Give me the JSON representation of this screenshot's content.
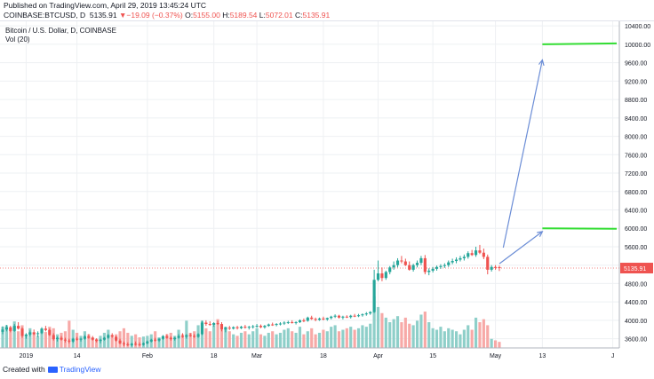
{
  "header": {
    "published": "Published on TradingView.com, April 29, 2019 13:45:24 UTC",
    "symbol": "COINBASE:BTCUSD, D",
    "last": "5135.91",
    "change": "−19.09 (−0.37%)",
    "open_label": "O:",
    "open": "5155.00",
    "high_label": "H:",
    "high": "5189.54",
    "low_label": "L:",
    "low": "5072.01",
    "close_label": "C:",
    "close": "5135.91"
  },
  "legend": {
    "title": "Bitcoin / U.S. Dollar, D, COINBASE",
    "volume": "Vol (20)"
  },
  "footer": {
    "created_with": "Created with",
    "brand": "TradingView"
  },
  "colors": {
    "up": "#26a69a",
    "down": "#ef5350",
    "vol_up": "#8ecfc9",
    "vol_down": "#f7a9a7",
    "arrow": "#6b8dd6",
    "target_line": "#33dd33",
    "price_tag": "#ef5350"
  },
  "chart_data": {
    "type": "candlestick",
    "symbol": "COINBASE:BTCUSD",
    "interval": "D",
    "ylim": [
      3400,
      10500
    ],
    "y_ticks": [
      3600,
      4000,
      4400,
      4800,
      5200,
      5600,
      6000,
      6400,
      6800,
      7200,
      7600,
      8000,
      8400,
      8800,
      9200,
      9600,
      10000,
      10400
    ],
    "y_tick_labels": [
      "3600.00",
      "4000.00",
      "4400.00",
      "4800.00",
      "5200.00",
      "5600.00",
      "6000.00",
      "6400.00",
      "6800.00",
      "7200.00",
      "7600.00",
      "8000.00",
      "8400.00",
      "8800.00",
      "9200.00",
      "9600.00",
      "10000.00",
      "10400.00"
    ],
    "x_ticks": [
      {
        "label": "2019",
        "day": 6
      },
      {
        "label": "14",
        "day": 19
      },
      {
        "label": "Feb",
        "day": 37
      },
      {
        "label": "18",
        "day": 54
      },
      {
        "label": "Mar",
        "day": 65
      },
      {
        "label": "18",
        "day": 82
      },
      {
        "label": "Apr",
        "day": 96
      },
      {
        "label": "15",
        "day": 110
      },
      {
        "label": "May",
        "day": 126
      },
      {
        "label": "13",
        "day": 138
      },
      {
        "label": "J",
        "day": 156
      }
    ],
    "x_range": [
      0,
      157
    ],
    "last_price": 5135.91,
    "last_price_label": "5135.91",
    "candles": [
      [
        3750,
        3870,
        3700,
        3800
      ],
      [
        3800,
        3900,
        3760,
        3850
      ],
      [
        3850,
        3880,
        3740,
        3770
      ],
      [
        3770,
        3920,
        3750,
        3880
      ],
      [
        3880,
        3960,
        3800,
        3820
      ],
      [
        3820,
        3850,
        3620,
        3660
      ],
      [
        3660,
        3720,
        3600,
        3690
      ],
      [
        3690,
        3780,
        3650,
        3740
      ],
      [
        3740,
        3800,
        3680,
        3700
      ],
      [
        3700,
        3760,
        3640,
        3720
      ],
      [
        3720,
        3850,
        3700,
        3820
      ],
      [
        3820,
        3880,
        3760,
        3790
      ],
      [
        3790,
        3820,
        3660,
        3680
      ],
      [
        3680,
        3720,
        3560,
        3590
      ],
      [
        3590,
        3650,
        3540,
        3620
      ],
      [
        3620,
        3660,
        3560,
        3580
      ],
      [
        3580,
        3620,
        3520,
        3560
      ],
      [
        3560,
        3600,
        3500,
        3540
      ],
      [
        3540,
        3620,
        3510,
        3600
      ],
      [
        3600,
        3640,
        3560,
        3580
      ],
      [
        3580,
        3620,
        3540,
        3600
      ],
      [
        3600,
        3680,
        3580,
        3650
      ],
      [
        3650,
        3700,
        3600,
        3620
      ],
      [
        3620,
        3660,
        3560,
        3580
      ],
      [
        3580,
        3610,
        3520,
        3550
      ],
      [
        3550,
        3600,
        3500,
        3580
      ],
      [
        3580,
        3640,
        3560,
        3620
      ],
      [
        3620,
        3700,
        3600,
        3680
      ],
      [
        3680,
        3720,
        3620,
        3640
      ],
      [
        3640,
        3660,
        3540,
        3560
      ],
      [
        3560,
        3600,
        3480,
        3500
      ],
      [
        3500,
        3540,
        3440,
        3480
      ],
      [
        3480,
        3520,
        3440,
        3460
      ],
      [
        3460,
        3510,
        3430,
        3490
      ],
      [
        3490,
        3540,
        3450,
        3480
      ],
      [
        3480,
        3520,
        3440,
        3470
      ],
      [
        3470,
        3520,
        3450,
        3500
      ],
      [
        3500,
        3560,
        3480,
        3540
      ],
      [
        3540,
        3600,
        3520,
        3580
      ],
      [
        3580,
        3620,
        3540,
        3560
      ],
      [
        3560,
        3610,
        3530,
        3600
      ],
      [
        3600,
        3680,
        3580,
        3650
      ],
      [
        3650,
        3700,
        3600,
        3620
      ],
      [
        3620,
        3650,
        3560,
        3590
      ],
      [
        3590,
        3640,
        3560,
        3620
      ],
      [
        3620,
        3700,
        3600,
        3660
      ],
      [
        3660,
        3720,
        3620,
        3640
      ],
      [
        3640,
        3700,
        3600,
        3680
      ],
      [
        3680,
        3720,
        3640,
        3660
      ],
      [
        3660,
        3700,
        3620,
        3640
      ],
      [
        3640,
        3720,
        3620,
        3700
      ],
      [
        3700,
        3990,
        3680,
        3950
      ],
      [
        3950,
        4000,
        3880,
        3920
      ],
      [
        3920,
        3980,
        3880,
        3900
      ],
      [
        3900,
        3960,
        3860,
        3940
      ],
      [
        3940,
        3990,
        3900,
        3920
      ],
      [
        3920,
        3960,
        3760,
        3800
      ],
      [
        3800,
        3860,
        3740,
        3840
      ],
      [
        3840,
        3880,
        3790,
        3820
      ],
      [
        3820,
        3870,
        3800,
        3850
      ],
      [
        3850,
        3880,
        3800,
        3830
      ],
      [
        3830,
        3880,
        3810,
        3860
      ],
      [
        3860,
        3900,
        3820,
        3840
      ],
      [
        3840,
        3880,
        3800,
        3860
      ],
      [
        3860,
        3900,
        3820,
        3870
      ],
      [
        3870,
        3920,
        3840,
        3880
      ],
      [
        3880,
        3910,
        3830,
        3850
      ],
      [
        3850,
        3900,
        3820,
        3880
      ],
      [
        3880,
        3930,
        3860,
        3910
      ],
      [
        3910,
        3950,
        3880,
        3900
      ],
      [
        3900,
        3940,
        3870,
        3920
      ],
      [
        3920,
        3960,
        3890,
        3930
      ],
      [
        3930,
        3980,
        3900,
        3950
      ],
      [
        3950,
        3990,
        3920,
        3960
      ],
      [
        3960,
        4000,
        3930,
        3940
      ],
      [
        3940,
        3980,
        3910,
        3960
      ],
      [
        3960,
        4020,
        3940,
        4000
      ],
      [
        4000,
        4040,
        3960,
        3990
      ],
      [
        3990,
        4080,
        3970,
        4060
      ],
      [
        4060,
        4100,
        4010,
        4030
      ],
      [
        4030,
        4060,
        3980,
        4010
      ],
      [
        4010,
        4060,
        3990,
        4040
      ],
      [
        4040,
        4080,
        4000,
        4020
      ],
      [
        4020,
        4060,
        3990,
        4050
      ],
      [
        4050,
        4100,
        4020,
        4080
      ],
      [
        4080,
        4130,
        4050,
        4100
      ],
      [
        4100,
        4120,
        4040,
        4060
      ],
      [
        4060,
        4100,
        4020,
        4080
      ],
      [
        4080,
        4110,
        4050,
        4070
      ],
      [
        4070,
        4120,
        4040,
        4100
      ],
      [
        4100,
        4140,
        4070,
        4090
      ],
      [
        4090,
        4140,
        4070,
        4110
      ],
      [
        4110,
        4150,
        4080,
        4130
      ],
      [
        4130,
        4180,
        4100,
        4150
      ],
      [
        4150,
        4200,
        4120,
        4180
      ],
      [
        4180,
        5100,
        4160,
        4880
      ],
      [
        4880,
        5300,
        4850,
        5020
      ],
      [
        5020,
        5150,
        4850,
        4920
      ],
      [
        4920,
        5080,
        4880,
        5050
      ],
      [
        5050,
        5180,
        5000,
        5150
      ],
      [
        5150,
        5280,
        5100,
        5200
      ],
      [
        5200,
        5350,
        5150,
        5300
      ],
      [
        5300,
        5400,
        5240,
        5280
      ],
      [
        5280,
        5340,
        5180,
        5200
      ],
      [
        5200,
        5280,
        5080,
        5100
      ],
      [
        5100,
        5230,
        5060,
        5200
      ],
      [
        5200,
        5300,
        5150,
        5250
      ],
      [
        5250,
        5400,
        5200,
        5350
      ],
      [
        5350,
        5420,
        5000,
        5050
      ],
      [
        5050,
        5130,
        4980,
        5080
      ],
      [
        5080,
        5160,
        5040,
        5120
      ],
      [
        5120,
        5190,
        5080,
        5160
      ],
      [
        5160,
        5220,
        5120,
        5180
      ],
      [
        5180,
        5240,
        5140,
        5200
      ],
      [
        5200,
        5300,
        5160,
        5260
      ],
      [
        5260,
        5340,
        5220,
        5290
      ],
      [
        5290,
        5370,
        5240,
        5320
      ],
      [
        5320,
        5400,
        5280,
        5350
      ],
      [
        5350,
        5430,
        5300,
        5380
      ],
      [
        5380,
        5500,
        5340,
        5460
      ],
      [
        5460,
        5530,
        5400,
        5420
      ],
      [
        5420,
        5600,
        5380,
        5520
      ],
      [
        5520,
        5640,
        5440,
        5470
      ],
      [
        5470,
        5560,
        5330,
        5380
      ],
      [
        5380,
        5430,
        5000,
        5100
      ],
      [
        5100,
        5200,
        5060,
        5160
      ],
      [
        5160,
        5200,
        5100,
        5140
      ],
      [
        5155,
        5190,
        5072,
        5136
      ]
    ],
    "volume": [
      [
        28,
        1
      ],
      [
        30,
        1
      ],
      [
        24,
        0
      ],
      [
        35,
        1
      ],
      [
        22,
        0
      ],
      [
        30,
        0
      ],
      [
        18,
        1
      ],
      [
        26,
        1
      ],
      [
        20,
        0
      ],
      [
        16,
        1
      ],
      [
        24,
        1
      ],
      [
        21,
        0
      ],
      [
        28,
        0
      ],
      [
        26,
        0
      ],
      [
        18,
        1
      ],
      [
        20,
        0
      ],
      [
        22,
        0
      ],
      [
        36,
        0
      ],
      [
        24,
        1
      ],
      [
        20,
        0
      ],
      [
        16,
        1
      ],
      [
        22,
        1
      ],
      [
        18,
        0
      ],
      [
        14,
        0
      ],
      [
        12,
        0
      ],
      [
        16,
        1
      ],
      [
        20,
        1
      ],
      [
        24,
        1
      ],
      [
        14,
        0
      ],
      [
        18,
        0
      ],
      [
        22,
        0
      ],
      [
        26,
        0
      ],
      [
        20,
        0
      ],
      [
        16,
        1
      ],
      [
        18,
        0
      ],
      [
        14,
        0
      ],
      [
        15,
        1
      ],
      [
        16,
        1
      ],
      [
        18,
        1
      ],
      [
        22,
        0
      ],
      [
        14,
        1
      ],
      [
        16,
        1
      ],
      [
        18,
        0
      ],
      [
        20,
        0
      ],
      [
        16,
        1
      ],
      [
        24,
        1
      ],
      [
        18,
        0
      ],
      [
        36,
        1
      ],
      [
        20,
        0
      ],
      [
        22,
        0
      ],
      [
        30,
        1
      ],
      [
        36,
        1
      ],
      [
        26,
        0
      ],
      [
        22,
        0
      ],
      [
        30,
        1
      ],
      [
        38,
        0
      ],
      [
        24,
        0
      ],
      [
        28,
        1
      ],
      [
        22,
        0
      ],
      [
        18,
        1
      ],
      [
        16,
        0
      ],
      [
        20,
        1
      ],
      [
        22,
        0
      ],
      [
        18,
        1
      ],
      [
        22,
        1
      ],
      [
        26,
        1
      ],
      [
        18,
        0
      ],
      [
        16,
        1
      ],
      [
        20,
        1
      ],
      [
        22,
        0
      ],
      [
        18,
        1
      ],
      [
        20,
        1
      ],
      [
        24,
        1
      ],
      [
        26,
        1
      ],
      [
        22,
        0
      ],
      [
        20,
        1
      ],
      [
        28,
        1
      ],
      [
        18,
        0
      ],
      [
        22,
        1
      ],
      [
        26,
        0
      ],
      [
        18,
        0
      ],
      [
        20,
        1
      ],
      [
        24,
        0
      ],
      [
        22,
        1
      ],
      [
        28,
        1
      ],
      [
        30,
        1
      ],
      [
        22,
        0
      ],
      [
        24,
        1
      ],
      [
        26,
        0
      ],
      [
        28,
        1
      ],
      [
        24,
        0
      ],
      [
        26,
        1
      ],
      [
        30,
        1
      ],
      [
        28,
        1
      ],
      [
        32,
        1
      ],
      [
        68,
        1
      ],
      [
        54,
        1
      ],
      [
        46,
        0
      ],
      [
        40,
        1
      ],
      [
        34,
        1
      ],
      [
        38,
        1
      ],
      [
        42,
        1
      ],
      [
        34,
        0
      ],
      [
        40,
        0
      ],
      [
        32,
        0
      ],
      [
        30,
        1
      ],
      [
        36,
        1
      ],
      [
        44,
        1
      ],
      [
        48,
        0
      ],
      [
        34,
        1
      ],
      [
        26,
        1
      ],
      [
        24,
        1
      ],
      [
        28,
        1
      ],
      [
        22,
        1
      ],
      [
        26,
        1
      ],
      [
        24,
        1
      ],
      [
        22,
        1
      ],
      [
        18,
        1
      ],
      [
        24,
        1
      ],
      [
        30,
        1
      ],
      [
        24,
        0
      ],
      [
        40,
        1
      ],
      [
        34,
        0
      ],
      [
        38,
        0
      ],
      [
        30,
        0
      ],
      [
        12,
        1
      ],
      [
        10,
        0
      ],
      [
        8,
        0
      ]
    ],
    "annotations": [
      {
        "type": "arrow",
        "from": {
          "day": 128,
          "price": 5580
        },
        "to": {
          "day": 138,
          "price": 9660
        }
      },
      {
        "type": "arrow",
        "from": {
          "day": 127,
          "price": 5230
        },
        "to": {
          "day": 138,
          "price": 5930
        }
      },
      {
        "type": "hline",
        "from_day": 138,
        "to_day": 157,
        "price": 10000,
        "end_price": 10020
      },
      {
        "type": "hline",
        "from_day": 138,
        "to_day": 157,
        "price": 6000,
        "end_price": 5990
      }
    ]
  }
}
